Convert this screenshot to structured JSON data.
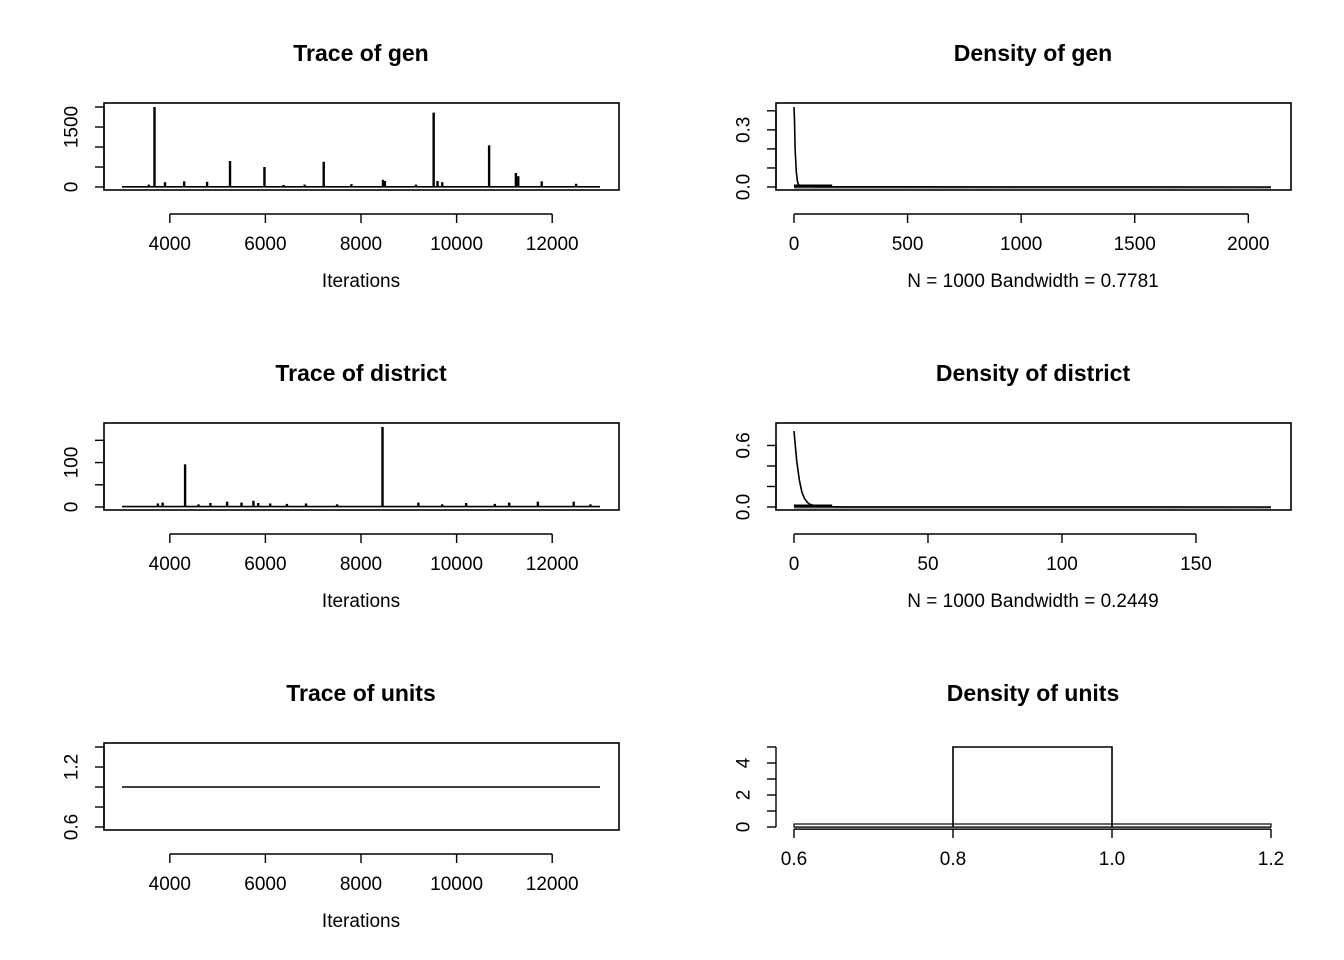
{
  "chart_data": [
    {
      "id": "trace-gen",
      "type": "line",
      "title": "Trace of gen",
      "xlabel": "Iterations",
      "xlim": [
        3000,
        13000
      ],
      "ylim": [
        0,
        2000
      ],
      "xticks": [
        4000,
        6000,
        8000,
        10000,
        12000
      ],
      "yticks": [
        0,
        500,
        1000,
        1500,
        2000
      ],
      "ytick_labels": [
        "0",
        "",
        "",
        "1500",
        ""
      ],
      "baseline": 5,
      "spikes": [
        {
          "x": 3560,
          "y": 60
        },
        {
          "x": 3680,
          "y": 2000
        },
        {
          "x": 3900,
          "y": 120
        },
        {
          "x": 4300,
          "y": 140
        },
        {
          "x": 4780,
          "y": 130
        },
        {
          "x": 5260,
          "y": 650
        },
        {
          "x": 5980,
          "y": 500
        },
        {
          "x": 6380,
          "y": 50
        },
        {
          "x": 6820,
          "y": 60
        },
        {
          "x": 7220,
          "y": 630
        },
        {
          "x": 7800,
          "y": 70
        },
        {
          "x": 8460,
          "y": 180
        },
        {
          "x": 8500,
          "y": 150
        },
        {
          "x": 9150,
          "y": 60
        },
        {
          "x": 9520,
          "y": 1860
        },
        {
          "x": 9600,
          "y": 150
        },
        {
          "x": 9700,
          "y": 120
        },
        {
          "x": 10680,
          "y": 1040
        },
        {
          "x": 11240,
          "y": 350
        },
        {
          "x": 11290,
          "y": 270
        },
        {
          "x": 11780,
          "y": 140
        },
        {
          "x": 12500,
          "y": 80
        }
      ]
    },
    {
      "id": "density-gen",
      "type": "line",
      "title": "Density of gen",
      "xlabel": "N = 1000   Bandwidth = 0.7781",
      "xlim": [
        0,
        2100
      ],
      "ylim": [
        0,
        0.42
      ],
      "xticks": [
        0,
        500,
        1000,
        1500,
        2000
      ],
      "yticks": [
        0,
        0.1,
        0.2,
        0.3,
        0.4
      ],
      "ytick_labels": [
        "0.0",
        "",
        "",
        "0.3",
        ""
      ],
      "curve": {
        "x": [
          0,
          2,
          5,
          10,
          15,
          20,
          30,
          50,
          100,
          2100
        ],
        "y": [
          0.42,
          0.35,
          0.2,
          0.08,
          0.03,
          0.012,
          0.005,
          0.002,
          0.001,
          0
        ]
      }
    },
    {
      "id": "trace-district",
      "type": "line",
      "title": "Trace of district",
      "xlabel": "Iterations",
      "xlim": [
        3000,
        13000
      ],
      "ylim": [
        0,
        180
      ],
      "xticks": [
        4000,
        6000,
        8000,
        10000,
        12000
      ],
      "yticks": [
        0,
        50,
        100,
        150
      ],
      "ytick_labels": [
        "0",
        "",
        "100",
        ""
      ],
      "baseline": 1,
      "spikes": [
        {
          "x": 3750,
          "y": 8
        },
        {
          "x": 3850,
          "y": 10
        },
        {
          "x": 4320,
          "y": 96
        },
        {
          "x": 4600,
          "y": 6
        },
        {
          "x": 4850,
          "y": 9
        },
        {
          "x": 5200,
          "y": 12
        },
        {
          "x": 5500,
          "y": 10
        },
        {
          "x": 5750,
          "y": 14
        },
        {
          "x": 5850,
          "y": 9
        },
        {
          "x": 6100,
          "y": 8
        },
        {
          "x": 6450,
          "y": 7
        },
        {
          "x": 6850,
          "y": 8
        },
        {
          "x": 7500,
          "y": 6
        },
        {
          "x": 8450,
          "y": 180
        },
        {
          "x": 9200,
          "y": 10
        },
        {
          "x": 9700,
          "y": 6
        },
        {
          "x": 10200,
          "y": 9
        },
        {
          "x": 10800,
          "y": 7
        },
        {
          "x": 11100,
          "y": 10
        },
        {
          "x": 11700,
          "y": 12
        },
        {
          "x": 12450,
          "y": 12
        },
        {
          "x": 12800,
          "y": 6
        }
      ]
    },
    {
      "id": "density-district",
      "type": "line",
      "title": "Density of district",
      "xlabel": "N = 1000   Bandwidth = 0.2449",
      "xlim": [
        0,
        178
      ],
      "ylim": [
        0,
        0.78
      ],
      "xticks": [
        0,
        50,
        100,
        150
      ],
      "yticks": [
        0,
        0.2,
        0.4,
        0.6
      ],
      "ytick_labels": [
        "0.0",
        "",
        "",
        "0.6"
      ],
      "curve": {
        "x": [
          0,
          0.5,
          1,
          2,
          3,
          4,
          5,
          6,
          8,
          10,
          15,
          20,
          178
        ],
        "y": [
          0.74,
          0.6,
          0.45,
          0.26,
          0.14,
          0.08,
          0.045,
          0.025,
          0.01,
          0.005,
          0.002,
          0.001,
          0
        ]
      }
    },
    {
      "id": "trace-units",
      "type": "line",
      "title": "Trace of units",
      "xlabel": "Iterations",
      "xlim": [
        3000,
        13000
      ],
      "ylim": [
        0.6,
        1.4
      ],
      "xticks": [
        4000,
        6000,
        8000,
        10000,
        12000
      ],
      "yticks": [
        0.6,
        0.8,
        1.0,
        1.2,
        1.4
      ],
      "ytick_labels": [
        "0.6",
        "",
        "",
        "1.2",
        ""
      ],
      "value": 1.0
    },
    {
      "id": "density-units",
      "type": "area",
      "title": "Density of units",
      "xlabel": "",
      "xlim": [
        0.6,
        1.2
      ],
      "ylim": [
        0,
        5
      ],
      "xticks": [
        0.6,
        0.8,
        1.0,
        1.2
      ],
      "xtick_labels": [
        "0.6",
        "0.8",
        "1.0",
        "1.2"
      ],
      "yticks": [
        0,
        1,
        2,
        3,
        4,
        5
      ],
      "ytick_labels": [
        "0",
        "",
        "2",
        "",
        "4",
        ""
      ],
      "curve": {
        "x": [
          0.8,
          0.8,
          1.0,
          1.0
        ],
        "y": [
          0,
          5,
          5,
          0
        ]
      }
    }
  ]
}
